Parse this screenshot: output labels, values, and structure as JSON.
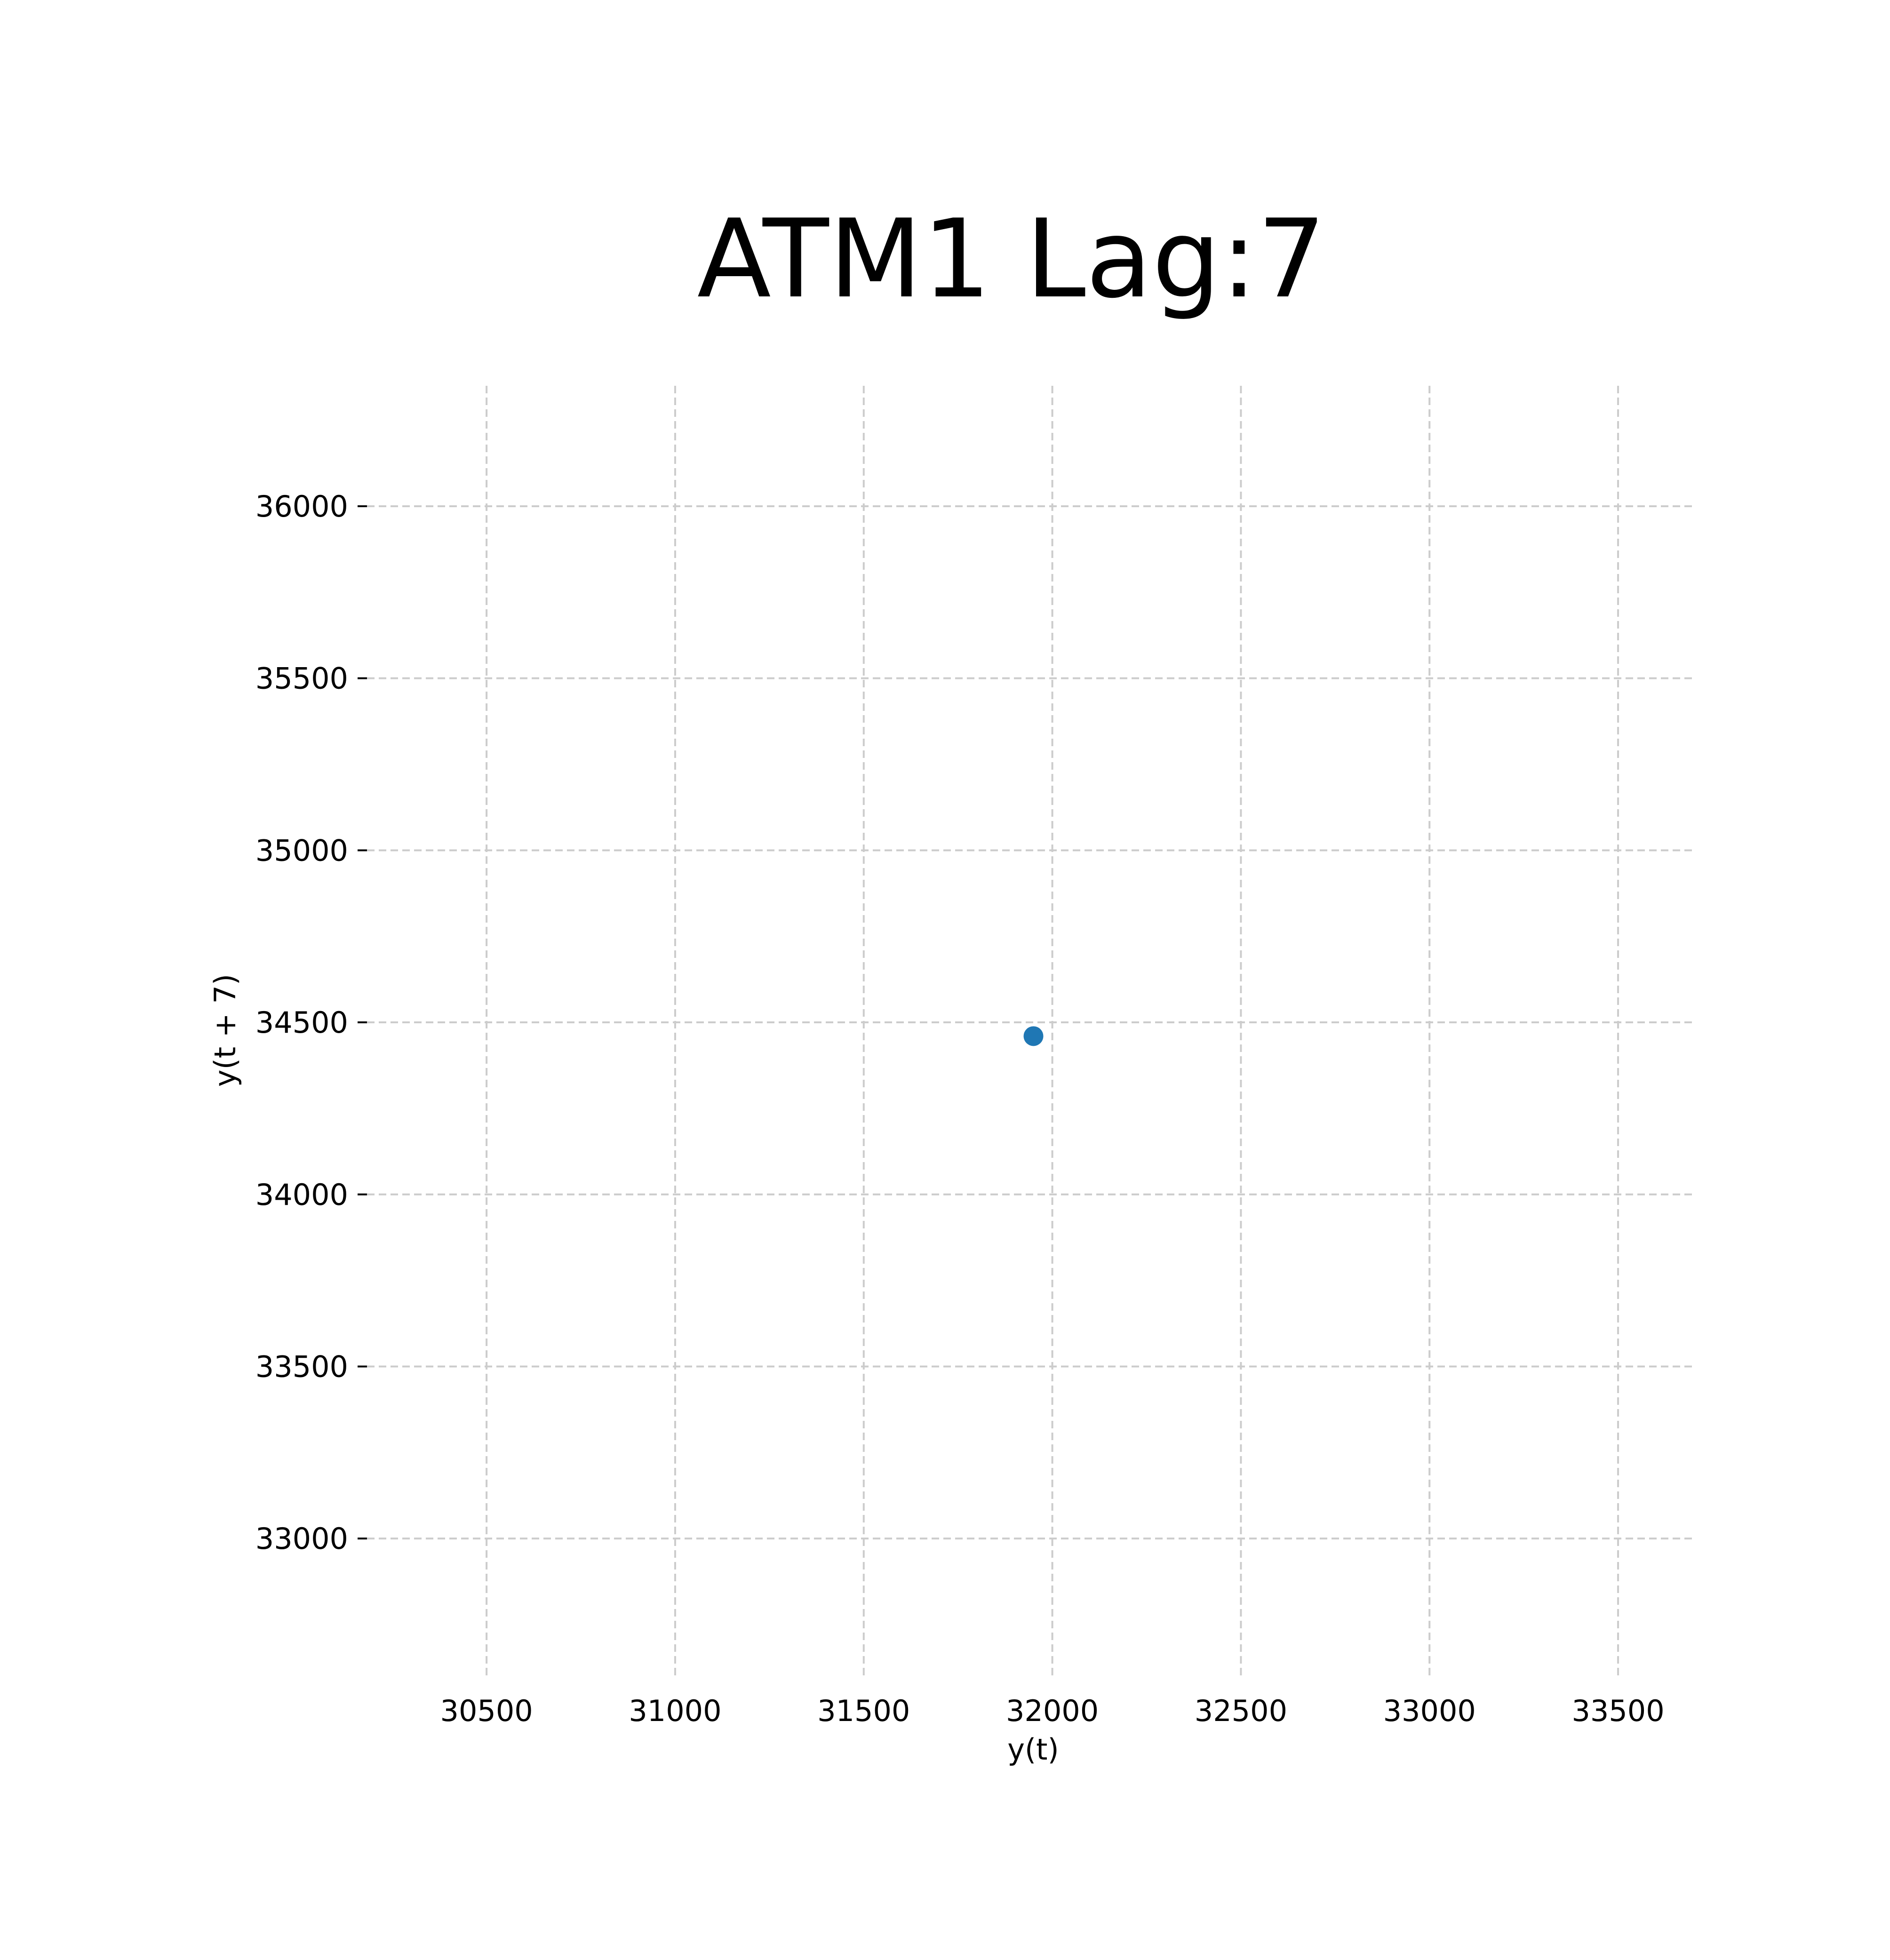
{
  "chart_data": {
    "type": "scatter",
    "title": "ATM1 Lag:7",
    "xlabel": "y(t)",
    "ylabel": "y(t + 7)",
    "xlim": [
      30183,
      33707
    ],
    "ylim": [
      32590,
      36350
    ],
    "x_ticks": [
      30500,
      31000,
      31500,
      32000,
      32500,
      33000,
      33500
    ],
    "y_ticks": [
      33000,
      33500,
      34000,
      34500,
      35000,
      35500,
      36000
    ],
    "grid": true,
    "grid_style": "dashed",
    "series": [
      {
        "color": "#1f77b4",
        "points": [
          {
            "x": 31950,
            "y": 34460
          }
        ]
      }
    ],
    "colors": {
      "marker": "#1f77b4",
      "grid": "#cccccc",
      "text": "#000000"
    }
  }
}
